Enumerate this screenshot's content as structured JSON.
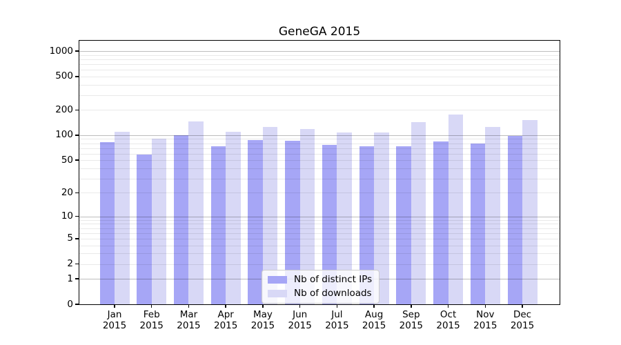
{
  "title": "GeneGA 2015",
  "colors": {
    "ips_bar": "#a6a6f6",
    "downloads_bar": "#d8d8f6",
    "axis": "#000000",
    "background": "#ffffff"
  },
  "legend": {
    "items": [
      "Nb of distinct IPs",
      "Nb of downloads"
    ]
  },
  "chart_data": {
    "type": "bar",
    "title": "GeneGA 2015",
    "categories": [
      "Jan 2015",
      "Feb 2015",
      "Mar 2015",
      "Apr 2015",
      "May 2015",
      "Jun 2015",
      "Jul 2015",
      "Aug 2015",
      "Sep 2015",
      "Oct 2015",
      "Nov 2015",
      "Dec 2015"
    ],
    "series": [
      {
        "name": "Nb of distinct IPs",
        "color": "#a6a6f6",
        "values": [
          82,
          59,
          100,
          74,
          87,
          85,
          76,
          74,
          73,
          84,
          80,
          98
        ]
      },
      {
        "name": "Nb of downloads",
        "color": "#d8d8f6",
        "values": [
          110,
          90,
          147,
          110,
          125,
          119,
          108,
          108,
          142,
          175,
          125,
          152
        ]
      }
    ],
    "xlabel": "",
    "ylabel": "",
    "y_ticks": [
      0,
      1,
      2,
      5,
      10,
      20,
      50,
      100,
      200,
      500,
      1000
    ],
    "y_scale": "log10(value+1)",
    "ylim": [
      0,
      1330
    ],
    "grid": true,
    "legend_position": "lower center"
  }
}
